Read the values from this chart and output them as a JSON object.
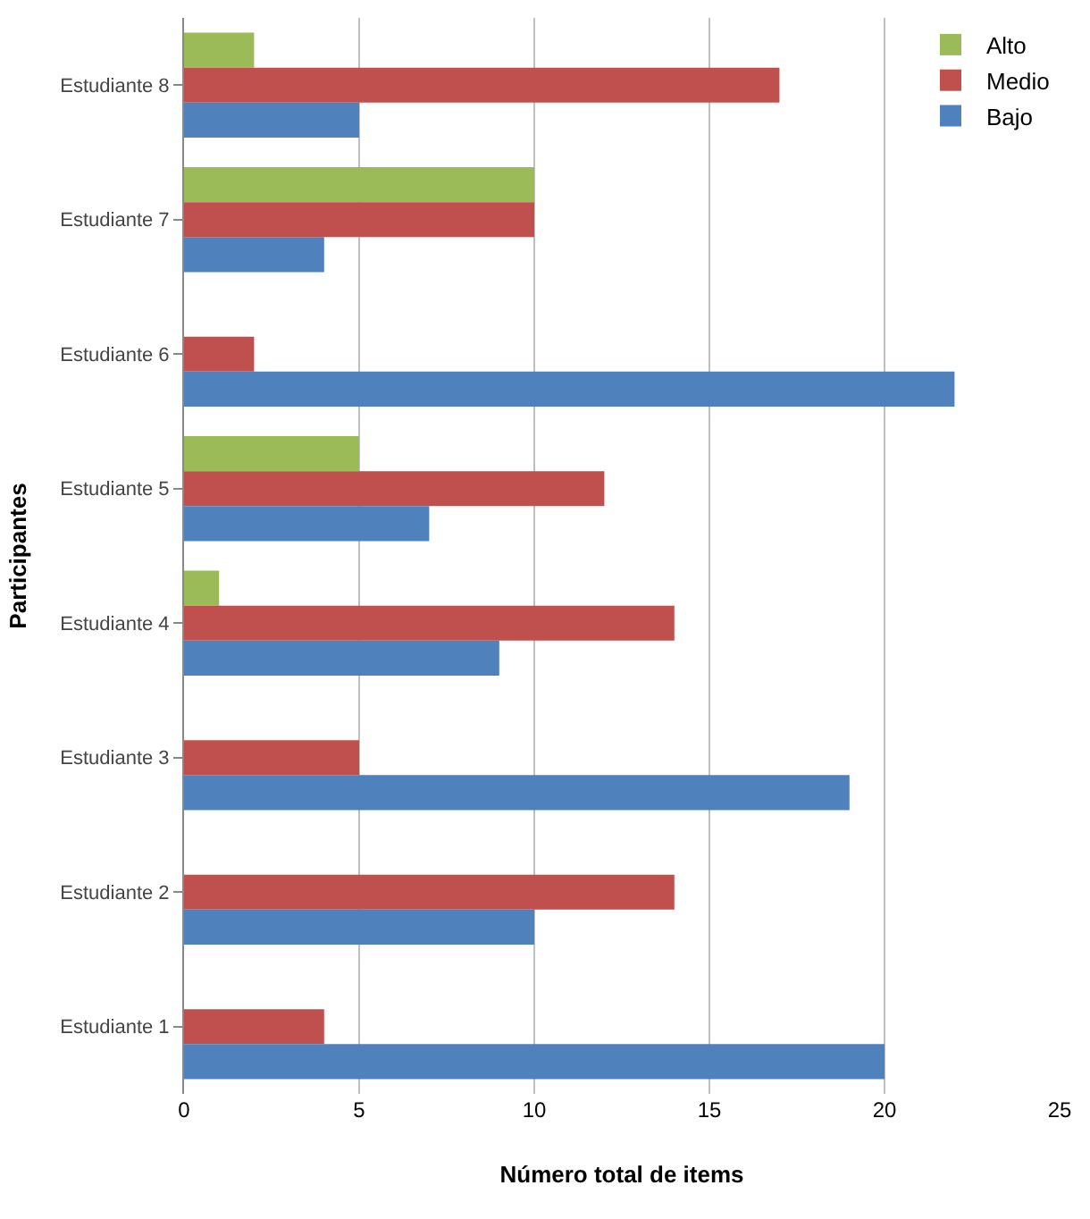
{
  "chart_data": {
    "type": "bar",
    "orientation": "horizontal",
    "xlabel": "Número total de items",
    "ylabel": "Participantes",
    "categories": [
      "Estudiante 8",
      "Estudiante 7",
      "Estudiante 6",
      "Estudiante 5",
      "Estudiante 4",
      "Estudiante 3",
      "Estudiante 2",
      "Estudiante 1"
    ],
    "series": [
      {
        "name": "Alto",
        "color": "#9bbb59",
        "values": [
          2,
          10,
          null,
          5,
          1,
          null,
          null,
          null
        ]
      },
      {
        "name": "Medio",
        "color": "#c0504d",
        "values": [
          17,
          10,
          2,
          12,
          14,
          5,
          14,
          4
        ]
      },
      {
        "name": "Bajo",
        "color": "#4f81bd",
        "values": [
          5,
          4,
          22,
          7,
          9,
          19,
          10,
          20
        ]
      }
    ],
    "xlim": [
      0,
      25
    ],
    "xticks": [
      0,
      5,
      10,
      15,
      20,
      25
    ],
    "grid": "x",
    "legend": "top right"
  }
}
